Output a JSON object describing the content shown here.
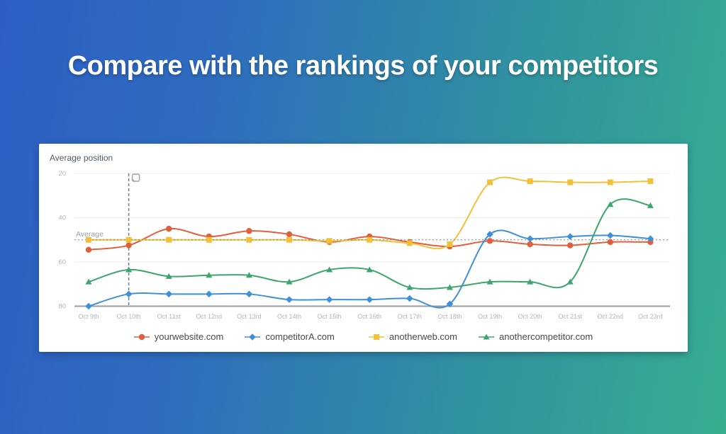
{
  "page": {
    "heading": "Compare with the rankings of your competitors"
  },
  "card": {
    "title": "Average position"
  },
  "chart_data": {
    "type": "line",
    "title": "Average position",
    "x": [
      "Oct 9th",
      "Oct 10th",
      "Oct 11st",
      "Oct 12nd",
      "Oct 13rd",
      "Oct 14th",
      "Oct 15th",
      "Oct 16th",
      "Oct 17th",
      "Oct 18th",
      "Oct 19th",
      "Oct 20th",
      "Oct 21st",
      "Oct 22nd",
      "Oct 23rd"
    ],
    "y_ticks": [
      20,
      40,
      60,
      80
    ],
    "ylim": [
      20,
      80
    ],
    "y_axis_inverted": true,
    "grid": true,
    "legend_position": "bottom",
    "average_line": {
      "label": "Average",
      "value": 50
    },
    "annotation": {
      "x_label": "Oct 10th",
      "x_index": 1,
      "type": "vertical-dashed-line-with-note-icon"
    },
    "series": [
      {
        "name": "yourwebsite.com",
        "color": "#e05f3e",
        "marker": "circle",
        "values": [
          54.5,
          52.5,
          45,
          48.5,
          46,
          47.5,
          51,
          48.5,
          51,
          53,
          50.5,
          52,
          52.5,
          51,
          51
        ]
      },
      {
        "name": "competitorA.com",
        "color": "#4090d8",
        "marker": "diamond",
        "values": [
          80,
          74.5,
          74.5,
          74.5,
          74.5,
          77,
          77,
          77,
          76.5,
          79,
          47.5,
          49.5,
          48.5,
          48,
          49.5
        ]
      },
      {
        "name": "anotherweb.com",
        "color": "#f3c139",
        "marker": "square",
        "values": [
          50,
          50,
          50,
          50,
          50,
          50,
          50.5,
          50,
          51.5,
          52,
          24,
          23.5,
          24,
          24,
          23.5
        ]
      },
      {
        "name": "anothercompetitor.com",
        "color": "#3ba56b",
        "marker": "triangle",
        "values": [
          69,
          63.5,
          66.5,
          66,
          66,
          69,
          63.5,
          63.5,
          71.5,
          71.5,
          69,
          69,
          69,
          34,
          34.5
        ]
      }
    ],
    "colors": {
      "gridline": "#ececec",
      "axis_line": "#9b9b9b",
      "tick_text": "#b4b4b4",
      "average_line": "#7d7d7d",
      "annotation_line": "#6e8494"
    }
  }
}
